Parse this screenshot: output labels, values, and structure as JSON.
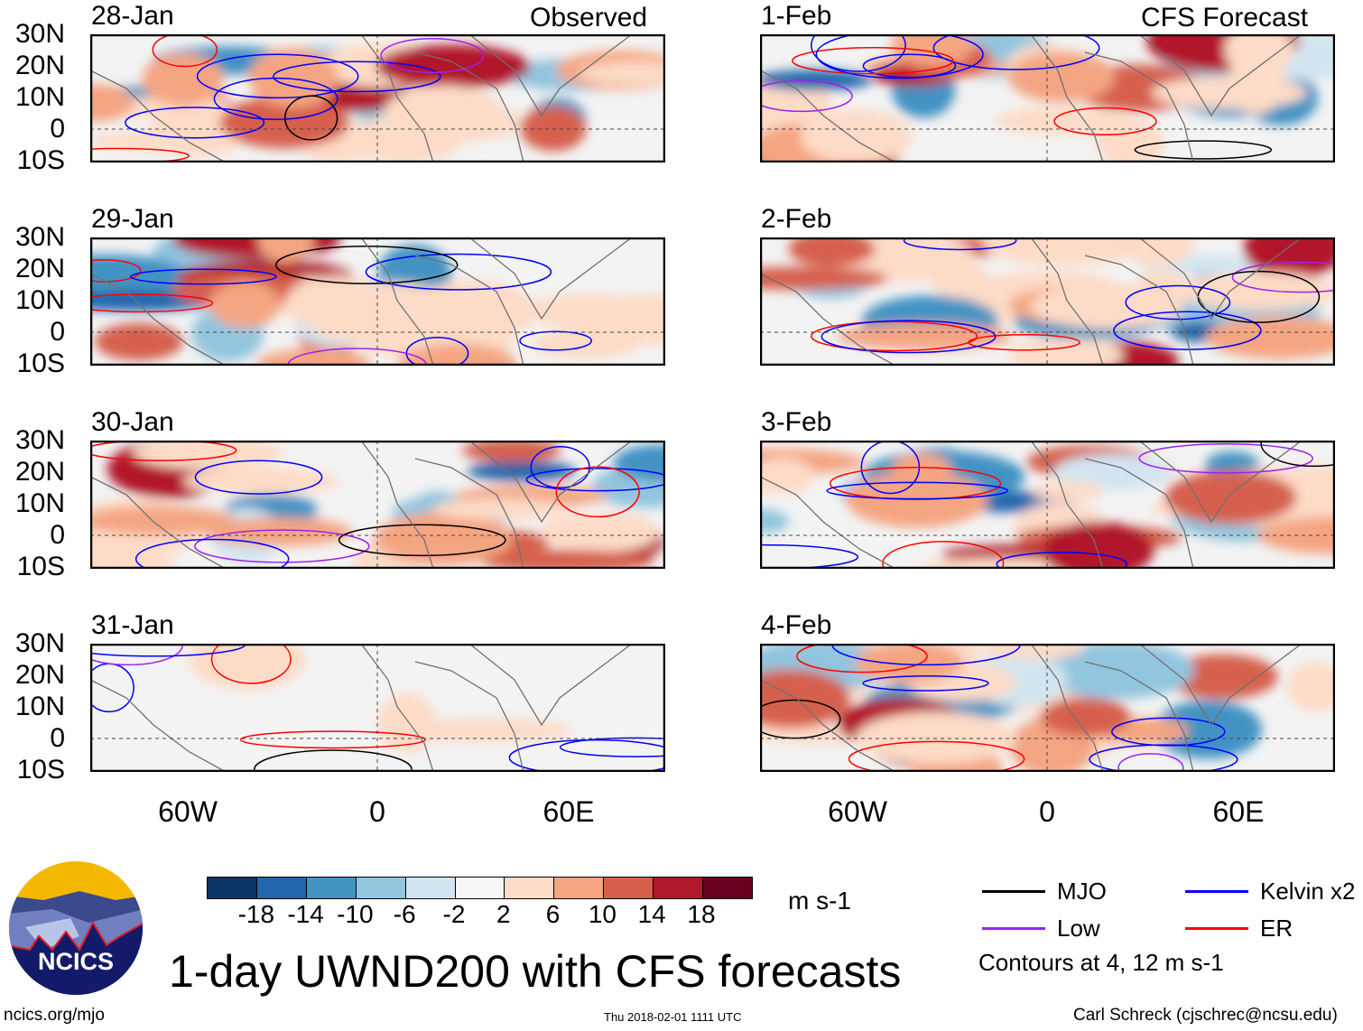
{
  "panels": {
    "observed_header": "Observed",
    "forecast_header": "CFS Forecast",
    "left_dates": [
      "28-Jan",
      "29-Jan",
      "30-Jan",
      "31-Jan"
    ],
    "right_dates": [
      "1-Feb",
      "2-Feb",
      "3-Feb",
      "4-Feb"
    ],
    "lat_labels": [
      "30N",
      "20N",
      "10N",
      "0",
      "10S"
    ],
    "lon_labels": [
      "60W",
      "0",
      "60E"
    ]
  },
  "colorbar": {
    "colors": [
      "#0b3366",
      "#2166ac",
      "#4393c3",
      "#92c5de",
      "#d1e5f0",
      "#f7f7f7",
      "#fddbc7",
      "#f4a582",
      "#d6604d",
      "#b2182b",
      "#67001f"
    ],
    "ticks": [
      "-18",
      "-14",
      "-10",
      "-6",
      "-2",
      "2",
      "6",
      "10",
      "14",
      "18"
    ],
    "units": "m s-1"
  },
  "legend": {
    "items": [
      {
        "label": "MJO",
        "color": "#000000"
      },
      {
        "label": "Kelvin x2",
        "color": "#0000ff"
      },
      {
        "label": "Low",
        "color": "#a020f0"
      },
      {
        "label": "ER",
        "color": "#ff0000"
      }
    ],
    "contours_note": "Contours at 4, 12 m s-1"
  },
  "logo_text": "NCICS",
  "title": "1-day UWND200 with CFS forecasts",
  "footer": {
    "url": "ncics.org/mjo",
    "timestamp": "Thu 2018-02-01 1111 UTC",
    "author": "Carl Schreck (cjschrec@ncsu.edu)"
  }
}
